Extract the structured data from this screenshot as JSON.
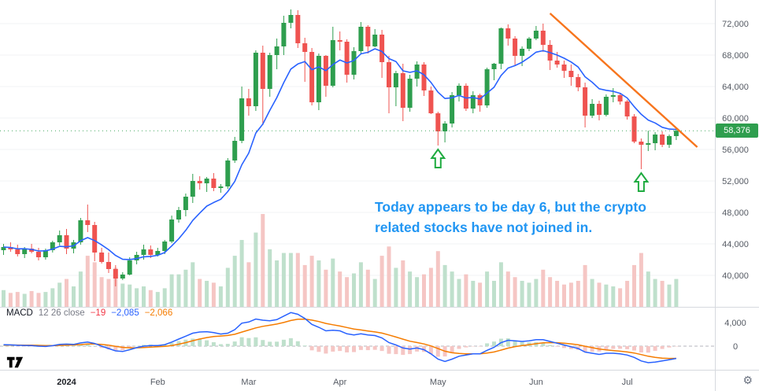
{
  "annotation": {
    "line1": "Today appears to be day 6, but the crypto",
    "line2": "related stocks have not joined in.",
    "color": "#2196f3"
  },
  "macd_header": {
    "title": "MACD",
    "params": "12 26 close",
    "hist_value": "−19",
    "macd_value": "−2,085",
    "signal_value": "−2,066"
  },
  "price_axis": {
    "last_price_label": "58,376",
    "ticks": [
      {
        "label": "72,000",
        "value": 72000
      },
      {
        "label": "68,000",
        "value": 68000
      },
      {
        "label": "64,000",
        "value": 64000
      },
      {
        "label": "60,000",
        "value": 60000
      },
      {
        "label": "56,000",
        "value": 56000
      },
      {
        "label": "52,000",
        "value": 52000
      },
      {
        "label": "48,000",
        "value": 48000
      },
      {
        "label": "44,000",
        "value": 44000
      },
      {
        "label": "40,000",
        "value": 40000
      }
    ]
  },
  "time_axis": {
    "labels": [
      {
        "label": "2024",
        "index": 9,
        "year": true
      },
      {
        "label": "Feb",
        "index": 22
      },
      {
        "label": "Mar",
        "index": 35
      },
      {
        "label": "Apr",
        "index": 48
      },
      {
        "label": "May",
        "index": 62
      },
      {
        "label": "Jun",
        "index": 76
      },
      {
        "label": "Jul",
        "index": 89
      }
    ]
  },
  "icons": {
    "gear_glyph": "⚙"
  },
  "colors": {
    "up": "#2e9e4e",
    "down": "#ef5350",
    "vol_up": "#bfe0cc",
    "vol_down": "#f5c6c4",
    "ma_line": "#2962ff",
    "macd_line": "#2962ff",
    "signal_line": "#f57c00",
    "trendline": "#f7751d",
    "arrow": "#1fab40",
    "axis_text": "#555a63",
    "grid": "#f1f3f6",
    "sep": "#d6d9de",
    "macd_zero": "#9598a1",
    "hist_pos": "#bfe0cc",
    "hist_neg": "#f5c6c4",
    "macd_title": "#131722",
    "macd_params": "#787b86",
    "hist_value": "#f23645",
    "macd_value": "#2962ff",
    "signal_value": "#f57c00"
  },
  "chart_data": {
    "type": "candlestick",
    "panes": [
      "price+volume",
      "macd"
    ],
    "x_range_hint": "Dec 2023 – Jul 2024, approx 2-day candles",
    "ylim": [
      36000,
      75000
    ],
    "price_tick_step": 4000,
    "last_price": 58376,
    "overlays": {
      "moving_average": "blue smoothed moving-average line over closes",
      "trendline_note": "orange descending resistance line over Jun–Jul highs"
    },
    "trendline": {
      "from_index": 78,
      "from_price": 73300,
      "to_index": 99,
      "to_price": 56300
    },
    "arrows": [
      {
        "index": 62,
        "price": 56500
      },
      {
        "index": 91,
        "price": 53500
      }
    ],
    "ohlc": [
      [
        43200,
        44000,
        42600,
        43600
      ],
      [
        43600,
        44200,
        43000,
        43300
      ],
      [
        43300,
        43900,
        42400,
        42700
      ],
      [
        42700,
        43600,
        42200,
        43400
      ],
      [
        43400,
        44000,
        42800,
        43000
      ],
      [
        43000,
        43500,
        41900,
        42300
      ],
      [
        42300,
        43400,
        42000,
        43200
      ],
      [
        43200,
        44400,
        42900,
        44200
      ],
      [
        44200,
        45700,
        43800,
        45100
      ],
      [
        45100,
        45900,
        42700,
        43400
      ],
      [
        43400,
        44500,
        42800,
        44200
      ],
      [
        44200,
        47300,
        43900,
        47000
      ],
      [
        47000,
        49000,
        45500,
        46400
      ],
      [
        46400,
        46800,
        41800,
        42900
      ],
      [
        42900,
        43500,
        41500,
        41700
      ],
      [
        41700,
        42900,
        40300,
        40800
      ],
      [
        40800,
        41300,
        38600,
        39600
      ],
      [
        39600,
        40400,
        39400,
        40100
      ],
      [
        40100,
        42300,
        40000,
        41900
      ],
      [
        41900,
        43000,
        41400,
        42600
      ],
      [
        42600,
        43900,
        42000,
        43300
      ],
      [
        43300,
        43800,
        42200,
        42600
      ],
      [
        42600,
        43500,
        42400,
        43100
      ],
      [
        43100,
        44500,
        42700,
        44300
      ],
      [
        44300,
        47600,
        44100,
        47100
      ],
      [
        47100,
        48700,
        46700,
        48300
      ],
      [
        48300,
        50400,
        47500,
        50000
      ],
      [
        50000,
        52900,
        49200,
        52000
      ],
      [
        52000,
        52600,
        50900,
        51700
      ],
      [
        51700,
        52500,
        50600,
        52300
      ],
      [
        52300,
        53000,
        50700,
        51100
      ],
      [
        51100,
        51600,
        50500,
        51300
      ],
      [
        51300,
        54900,
        51000,
        54600
      ],
      [
        54600,
        57600,
        54300,
        57100
      ],
      [
        57100,
        64000,
        56800,
        62500
      ],
      [
        62500,
        63700,
        60300,
        61500
      ],
      [
        61500,
        68600,
        60900,
        68300
      ],
      [
        68300,
        69200,
        59100,
        63700
      ],
      [
        63700,
        68300,
        62700,
        68000
      ],
      [
        68000,
        70100,
        66200,
        69100
      ],
      [
        69100,
        73000,
        68000,
        72100
      ],
      [
        72100,
        73800,
        71400,
        73100
      ],
      [
        73100,
        73700,
        68900,
        69500
      ],
      [
        69500,
        70200,
        64600,
        68400
      ],
      [
        68400,
        68900,
        61600,
        62000
      ],
      [
        62000,
        68200,
        61000,
        67900
      ],
      [
        67900,
        68000,
        62700,
        64100
      ],
      [
        64100,
        71600,
        63900,
        69900
      ],
      [
        69900,
        71000,
        68600,
        69700
      ],
      [
        69700,
        70000,
        64500,
        65500
      ],
      [
        65500,
        69000,
        64900,
        68500
      ],
      [
        68500,
        72200,
        68200,
        71600
      ],
      [
        71600,
        71800,
        68200,
        69100
      ],
      [
        69100,
        71300,
        69000,
        70600
      ],
      [
        70600,
        71200,
        65100,
        67100
      ],
      [
        67100,
        67900,
        60600,
        63900
      ],
      [
        63900,
        66000,
        61500,
        65700
      ],
      [
        65700,
        66900,
        59600,
        61300
      ],
      [
        61300,
        65500,
        60800,
        65000
      ],
      [
        65000,
        67200,
        64000,
        66800
      ],
      [
        66800,
        67100,
        62800,
        63500
      ],
      [
        63500,
        64000,
        60500,
        60600
      ],
      [
        60600,
        60800,
        56500,
        58300
      ],
      [
        58300,
        59600,
        56900,
        59300
      ],
      [
        59300,
        63300,
        58800,
        62900
      ],
      [
        62900,
        64400,
        62100,
        64100
      ],
      [
        64100,
        64400,
        60900,
        61200
      ],
      [
        61200,
        63400,
        60600,
        62900
      ],
      [
        62900,
        63100,
        60800,
        61600
      ],
      [
        61600,
        66400,
        61300,
        66200
      ],
      [
        66200,
        67000,
        64800,
        66900
      ],
      [
        66900,
        71500,
        66200,
        71400
      ],
      [
        71400,
        71900,
        69200,
        70100
      ],
      [
        70100,
        70400,
        66600,
        67900
      ],
      [
        67900,
        69100,
        66600,
        68800
      ],
      [
        68800,
        70300,
        68500,
        70100
      ],
      [
        70100,
        71700,
        69900,
        71100
      ],
      [
        71100,
        72000,
        68400,
        69300
      ],
      [
        69300,
        69900,
        66100,
        67300
      ],
      [
        67300,
        68400,
        66400,
        66800
      ],
      [
        66800,
        67300,
        65100,
        66000
      ],
      [
        66000,
        66800,
        64100,
        65200
      ],
      [
        65200,
        65600,
        63400,
        63900
      ],
      [
        63900,
        64500,
        58800,
        60300
      ],
      [
        60300,
        62400,
        60000,
        61800
      ],
      [
        61800,
        62200,
        59700,
        60400
      ],
      [
        60400,
        63000,
        60200,
        62700
      ],
      [
        62700,
        63800,
        62000,
        62900
      ],
      [
        62900,
        63200,
        61700,
        62100
      ],
      [
        62100,
        62300,
        59800,
        60200
      ],
      [
        60200,
        60500,
        56800,
        57000
      ],
      [
        57000,
        57400,
        53500,
        56600
      ],
      [
        56600,
        58400,
        55800,
        56800
      ],
      [
        56800,
        58200,
        55900,
        57900
      ],
      [
        57900,
        58300,
        56300,
        56600
      ],
      [
        56600,
        57900,
        56200,
        57700
      ],
      [
        57700,
        58700,
        57200,
        58376
      ]
    ],
    "volume": [
      18,
      15,
      16,
      14,
      17,
      15,
      16,
      20,
      26,
      30,
      22,
      38,
      55,
      48,
      32,
      30,
      42,
      25,
      24,
      20,
      22,
      18,
      16,
      20,
      35,
      35,
      40,
      48,
      30,
      28,
      26,
      22,
      42,
      55,
      72,
      48,
      80,
      100,
      62,
      50,
      58,
      58,
      58,
      45,
      55,
      50,
      40,
      52,
      38,
      32,
      36,
      48,
      40,
      30,
      55,
      65,
      42,
      50,
      38,
      32,
      35,
      42,
      60,
      45,
      38,
      30,
      35,
      28,
      26,
      38,
      28,
      48,
      38,
      32,
      28,
      26,
      30,
      40,
      32,
      28,
      24,
      26,
      28,
      45,
      30,
      26,
      24,
      22,
      20,
      28,
      45,
      58,
      38,
      30,
      28,
      24,
      30
    ],
    "macd": {
      "ticks": [
        {
          "label": "4,000",
          "value": 4000
        },
        {
          "label": "0",
          "value": 0
        }
      ],
      "macd": [
        250,
        220,
        150,
        120,
        100,
        0,
        -60,
        80,
        300,
        350,
        300,
        550,
        700,
        450,
        0,
        -400,
        -800,
        -900,
        -600,
        -250,
        0,
        100,
        100,
        250,
        700,
        1200,
        1700,
        2200,
        2400,
        2450,
        2300,
        2050,
        2200,
        2800,
        3900,
        4100,
        4600,
        4400,
        4300,
        4500,
        5100,
        5700,
        5400,
        4700,
        3700,
        3200,
        2600,
        2700,
        2600,
        2100,
        1900,
        2100,
        1900,
        1800,
        1400,
        600,
        200,
        -300,
        -500,
        -300,
        -600,
        -1300,
        -2200,
        -2600,
        -2200,
        -1700,
        -1500,
        -1300,
        -1300,
        -700,
        -200,
        600,
        1000,
        900,
        800,
        900,
        1100,
        1100,
        800,
        500,
        200,
        -100,
        -400,
        -1000,
        -1200,
        -1400,
        -1200,
        -1200,
        -1300,
        -1500,
        -1900,
        -2500,
        -2800,
        -2700,
        -2500,
        -2300,
        -2085
      ],
      "signal": [
        180,
        200,
        190,
        175,
        160,
        130,
        90,
        90,
        130,
        175,
        200,
        270,
        355,
        375,
        300,
        160,
        -30,
        -205,
        -285,
        -280,
        -225,
        -160,
        -110,
        -40,
        110,
        330,
        600,
        920,
        1215,
        1460,
        1630,
        1715,
        1810,
        2010,
        2390,
        2730,
        3100,
        3360,
        3550,
        3740,
        4010,
        4350,
        4560,
        4590,
        4410,
        4170,
        3855,
        3625,
        3420,
        3155,
        2905,
        2745,
        2575,
        2420,
        2215,
        1890,
        1550,
        1180,
        845,
        615,
        370,
        35,
        -410,
        -850,
        -1120,
        -1235,
        -1290,
        -1290,
        -1290,
        -1175,
        -980,
        -665,
        -330,
        -85,
        90,
        250,
        420,
        555,
        605,
        585,
        510,
        385,
        230,
        -15,
        -255,
        -485,
        -625,
        -740,
        -850,
        -980,
        -1165,
        -1430,
        -1705,
        -1905,
        -2025,
        -2080,
        -2066
      ]
    }
  }
}
